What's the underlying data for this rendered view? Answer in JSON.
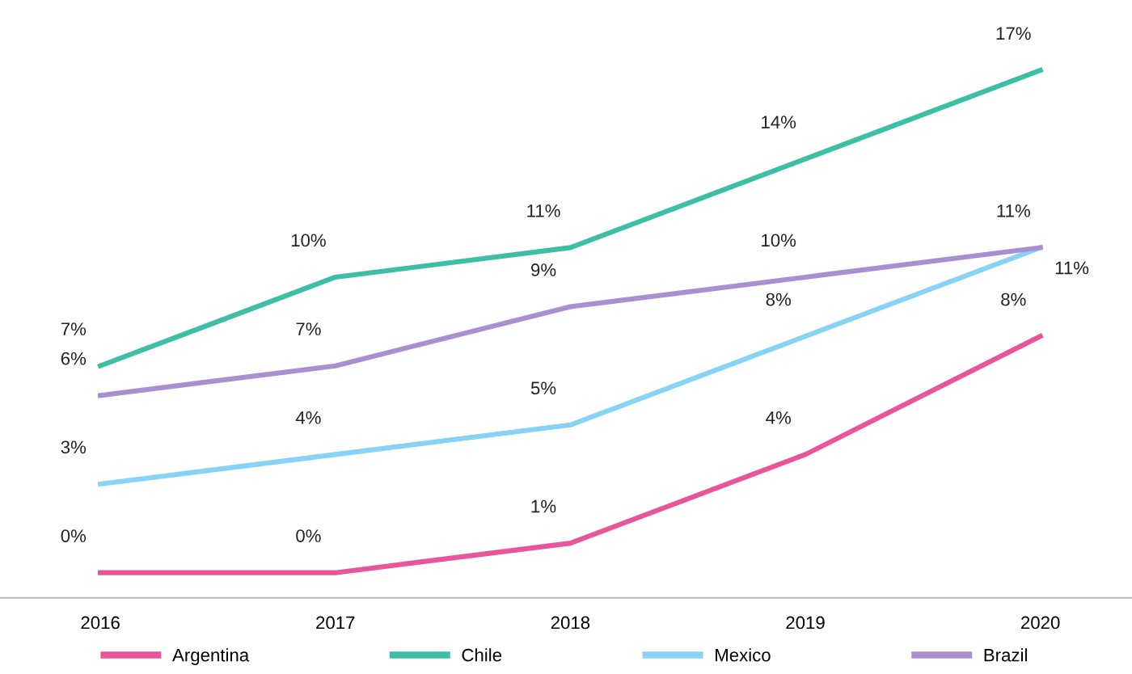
{
  "chart_data": {
    "type": "line",
    "categories": [
      "2016",
      "2017",
      "2018",
      "2019",
      "2020"
    ],
    "legend": "bottom",
    "grid": false,
    "marker": "none",
    "line_style": "solid",
    "series": [
      {
        "name": "Argentina",
        "color": "#e8559a",
        "values": [
          0,
          0,
          1,
          4,
          8
        ],
        "value_labels": [
          "0%",
          "0%",
          "1%",
          "4%",
          "8%"
        ]
      },
      {
        "name": "Chile",
        "color": "#3dbfa6",
        "values": [
          7,
          10,
          11,
          14,
          17
        ],
        "value_labels": [
          "7%",
          "10%",
          "11%",
          "14%",
          "17%"
        ]
      },
      {
        "name": "Mexico",
        "color": "#87d3f5",
        "values": [
          3,
          4,
          5,
          8,
          11
        ],
        "value_labels": [
          "3%",
          "4%",
          "5%",
          "8%",
          "11%"
        ]
      },
      {
        "name": "Brazil",
        "color": "#a98fd0",
        "values": [
          6,
          7,
          9,
          10,
          11
        ],
        "value_labels": [
          "6%",
          "7%",
          "9%",
          "10%",
          "11%"
        ]
      }
    ]
  }
}
